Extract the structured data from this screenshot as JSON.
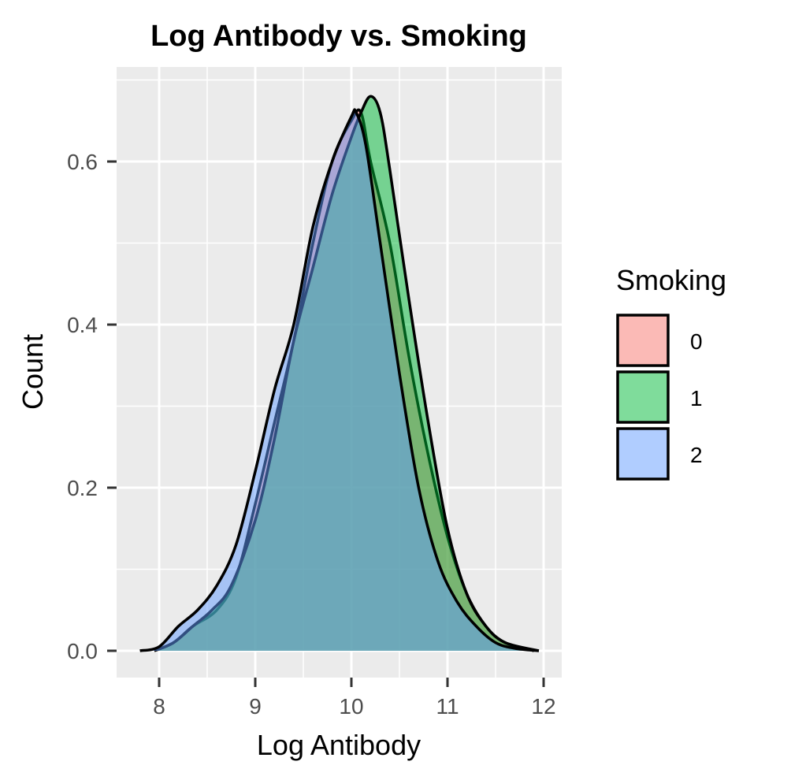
{
  "chart_data": {
    "type": "area",
    "subtype": "density",
    "title": "Log Antibody vs. Smoking",
    "xlabel": "Log Antibody",
    "ylabel": "Count",
    "xlim": [
      7.75,
      12.0
    ],
    "ylim": [
      0.0,
      0.7
    ],
    "x_ticks": [
      8,
      9,
      10,
      11,
      12
    ],
    "x_tick_labels": [
      "8",
      "9",
      "10",
      "11",
      "12"
    ],
    "y_ticks": [
      0.0,
      0.2,
      0.4,
      0.6
    ],
    "y_tick_labels": [
      "0.0",
      "0.2",
      "0.4",
      "0.6"
    ],
    "grid": true,
    "legend": {
      "title": "Smoking",
      "position": "right",
      "entries": [
        "0",
        "1",
        "2"
      ]
    },
    "series": [
      {
        "name": "0",
        "color": "#F8766D",
        "points": [
          [
            7.95,
            0.0
          ],
          [
            8.15,
            0.01
          ],
          [
            8.35,
            0.03
          ],
          [
            8.6,
            0.05
          ],
          [
            8.8,
            0.09
          ],
          [
            9.0,
            0.18
          ],
          [
            9.2,
            0.28
          ],
          [
            9.4,
            0.38
          ],
          [
            9.6,
            0.5
          ],
          [
            9.8,
            0.6
          ],
          [
            10.0,
            0.65
          ],
          [
            10.1,
            0.66
          ],
          [
            10.2,
            0.6
          ],
          [
            10.4,
            0.5
          ],
          [
            10.6,
            0.36
          ],
          [
            10.8,
            0.24
          ],
          [
            11.0,
            0.14
          ],
          [
            11.2,
            0.07
          ],
          [
            11.4,
            0.03
          ],
          [
            11.6,
            0.01
          ],
          [
            11.9,
            0.0
          ]
        ]
      },
      {
        "name": "1",
        "color": "#00BA38",
        "points": [
          [
            7.95,
            0.0
          ],
          [
            8.15,
            0.01
          ],
          [
            8.35,
            0.03
          ],
          [
            8.55,
            0.05
          ],
          [
            8.75,
            0.08
          ],
          [
            9.0,
            0.16
          ],
          [
            9.2,
            0.26
          ],
          [
            9.4,
            0.38
          ],
          [
            9.6,
            0.47
          ],
          [
            9.8,
            0.56
          ],
          [
            10.0,
            0.63
          ],
          [
            10.1,
            0.66
          ],
          [
            10.2,
            0.68
          ],
          [
            10.3,
            0.66
          ],
          [
            10.4,
            0.59
          ],
          [
            10.6,
            0.43
          ],
          [
            10.8,
            0.28
          ],
          [
            11.0,
            0.15
          ],
          [
            11.2,
            0.07
          ],
          [
            11.4,
            0.03
          ],
          [
            11.6,
            0.01
          ],
          [
            11.95,
            0.0
          ]
        ]
      },
      {
        "name": "2",
        "color": "#619CFF",
        "points": [
          [
            7.8,
            0.0
          ],
          [
            8.0,
            0.005
          ],
          [
            8.2,
            0.03
          ],
          [
            8.4,
            0.05
          ],
          [
            8.6,
            0.08
          ],
          [
            8.8,
            0.13
          ],
          [
            9.0,
            0.22
          ],
          [
            9.2,
            0.32
          ],
          [
            9.4,
            0.4
          ],
          [
            9.6,
            0.52
          ],
          [
            9.8,
            0.6
          ],
          [
            10.0,
            0.655
          ],
          [
            10.05,
            0.66
          ],
          [
            10.15,
            0.62
          ],
          [
            10.3,
            0.5
          ],
          [
            10.5,
            0.34
          ],
          [
            10.7,
            0.2
          ],
          [
            10.9,
            0.11
          ],
          [
            11.1,
            0.06
          ],
          [
            11.3,
            0.03
          ],
          [
            11.5,
            0.01
          ],
          [
            11.7,
            0.003
          ],
          [
            11.95,
            0.0
          ]
        ]
      }
    ]
  }
}
